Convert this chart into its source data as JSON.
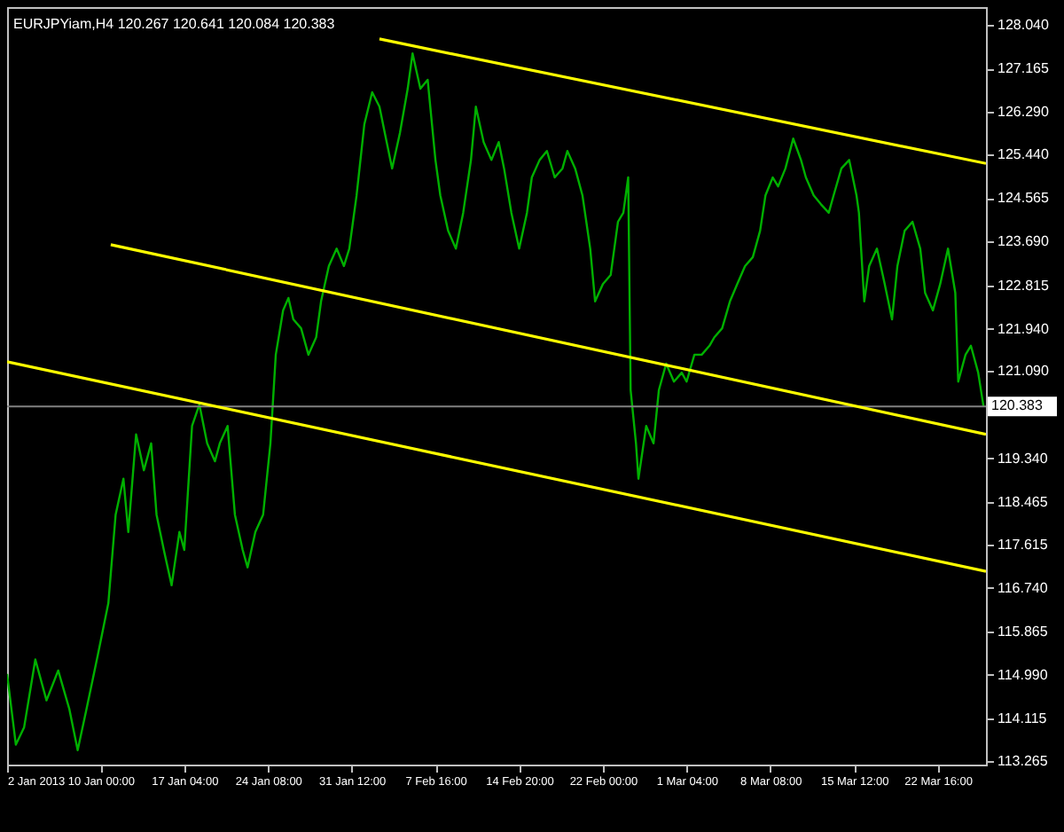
{
  "chart_data": {
    "type": "line",
    "title": "EURJPYiam,H4  120.267 120.641 120.084 120.383",
    "xlim": [
      "2013-01-02T00:00",
      "2013-03-26T19:00"
    ],
    "ylim": [
      113.19,
      128.4
    ],
    "xticks": [
      {
        "value": "2013-01-02T00:00",
        "label": "2 Jan 2013"
      },
      {
        "value": "2013-01-10T00:00",
        "label": "10 Jan 00:00"
      },
      {
        "value": "2013-01-17T04:00",
        "label": "17 Jan 04:00"
      },
      {
        "value": "2013-01-24T08:00",
        "label": "24 Jan 08:00"
      },
      {
        "value": "2013-01-31T12:00",
        "label": "31 Jan 12:00"
      },
      {
        "value": "2013-02-07T16:00",
        "label": "7 Feb 16:00"
      },
      {
        "value": "2013-02-14T20:00",
        "label": "14 Feb 20:00"
      },
      {
        "value": "2013-02-22T00:00",
        "label": "22 Feb 00:00"
      },
      {
        "value": "2013-03-01T04:00",
        "label": "1 Mar 04:00"
      },
      {
        "value": "2013-03-08T08:00",
        "label": "8 Mar 08:00"
      },
      {
        "value": "2013-03-15T12:00",
        "label": "15 Mar 12:00"
      },
      {
        "value": "2013-03-22T16:00",
        "label": "22 Mar 16:00"
      }
    ],
    "yticks": [
      {
        "value": 128.04,
        "label": "128.040"
      },
      127.165,
      {
        "value": 126.29,
        "label": "126.290"
      },
      {
        "value": 125.44,
        "label": "125.440"
      },
      124.565,
      {
        "value": 123.69,
        "label": "123.690"
      },
      122.815,
      {
        "value": 121.94,
        "label": "121.940"
      },
      {
        "value": 121.09,
        "label": "121.090"
      },
      {
        "value": 119.34,
        "label": "119.340"
      },
      118.465,
      117.615,
      {
        "value": 116.74,
        "label": "116.740"
      },
      115.865,
      {
        "value": 114.99,
        "label": "114.990"
      },
      114.115,
      113.265
    ],
    "grid": false,
    "marker": "none",
    "line_style": "solid",
    "ref_lines": [
      {
        "axis": "y",
        "value": 120.383,
        "label": "120.383",
        "color": "#808080"
      }
    ],
    "series": [
      {
        "color": "#00b000",
        "x": [
          "2013-01-02T00:00",
          "2013-01-02T18:00",
          "2013-01-03T11:00",
          "2013-01-04T10:00",
          "2013-01-05T09:00",
          "2013-01-06T09:00",
          "2013-01-07T08:00",
          "2013-01-08T01:00",
          "2013-01-08T19:00",
          "2013-01-09T18:00",
          "2013-01-10T16:00",
          "2013-01-11T07:00",
          "2013-01-11T23:00",
          "2013-01-12T09:00",
          "2013-01-13T01:00",
          "2013-01-13T17:00",
          "2013-01-14T08:00",
          "2013-01-14T19:00",
          "2013-01-15T10:00",
          "2013-01-16T02:00",
          "2013-01-16T18:00",
          "2013-01-17T04:00",
          "2013-01-17T20:00",
          "2013-01-18T11:00",
          "2013-01-19T03:00",
          "2013-01-19T19:00",
          "2013-01-20T05:00",
          "2013-01-20T21:00",
          "2013-01-21T12:00",
          "2013-01-22T04:00",
          "2013-01-22T14:00",
          "2013-01-23T06:00",
          "2013-01-23T22:00",
          "2013-01-24T13:00",
          "2013-01-25T00:00",
          "2013-01-25T15:00",
          "2013-01-26T02:00",
          "2013-01-26T12:00",
          "2013-01-27T04:00",
          "2013-01-27T19:00",
          "2013-01-28T11:00",
          "2013-01-28T21:00",
          "2013-01-29T13:00",
          "2013-01-30T05:00",
          "2013-01-30T20:00",
          "2013-01-31T07:00",
          "2013-01-31T22:00",
          "2013-02-01T14:00",
          "2013-02-02T06:00",
          "2013-02-02T21:00",
          "2013-02-03T08:00",
          "2013-02-03T23:00",
          "2013-02-04T15:00",
          "2013-02-05T07:00",
          "2013-02-05T17:00",
          "2013-02-06T09:00",
          "2013-02-07T00:00",
          "2013-02-07T16:00",
          "2013-02-08T02:00",
          "2013-02-08T18:00",
          "2013-02-09T10:00",
          "2013-02-10T01:00",
          "2013-02-10T17:00",
          "2013-02-11T03:00",
          "2013-02-11T19:00",
          "2013-02-12T11:00",
          "2013-02-13T02:00",
          "2013-02-13T13:00",
          "2013-02-14T04:00",
          "2013-02-14T20:00",
          "2013-02-15T12:00",
          "2013-02-15T22:00",
          "2013-02-16T14:00",
          "2013-02-17T05:00",
          "2013-02-17T21:00",
          "2013-02-18T13:00",
          "2013-02-18T23:00",
          "2013-02-19T15:00",
          "2013-02-20T06:00",
          "2013-02-20T22:00",
          "2013-02-21T08:00",
          "2013-02-22T00:00",
          "2013-02-22T16:00",
          "2013-02-23T07:00",
          "2013-02-23T18:00",
          "2013-02-24T04:00",
          "2013-02-24T09:00",
          "2013-02-24T20:00",
          "2013-02-25T01:00",
          "2013-02-25T17:00",
          "2013-02-26T08:00",
          "2013-02-26T19:00",
          "2013-02-27T10:00",
          "2013-02-28T02:00",
          "2013-02-28T18:00",
          "2013-03-01T04:00",
          "2013-03-01T20:00",
          "2013-03-02T11:00",
          "2013-03-03T03:00",
          "2013-03-03T13:00",
          "2013-03-04T05:00",
          "2013-03-04T21:00",
          "2013-03-05T12:00",
          "2013-03-06T04:00",
          "2013-03-06T20:00",
          "2013-03-07T11:00",
          "2013-03-07T22:00",
          "2013-03-08T13:00",
          "2013-03-09T00:00",
          "2013-03-09T15:00",
          "2013-03-10T07:00",
          "2013-03-10T23:00",
          "2013-03-11T09:00",
          "2013-03-12T01:00",
          "2013-03-12T16:00",
          "2013-03-13T08:00",
          "2013-03-13T18:00",
          "2013-03-14T10:00",
          "2013-03-15T02:00",
          "2013-03-15T17:00",
          "2013-03-15T22:00",
          "2013-03-16T09:00",
          "2013-03-16T19:00",
          "2013-03-17T11:00",
          "2013-03-18T03:00",
          "2013-03-18T18:00",
          "2013-03-19T05:00",
          "2013-03-19T20:00",
          "2013-03-20T12:00",
          "2013-03-21T04:00",
          "2013-03-21T14:00",
          "2013-03-22T06:00",
          "2013-03-22T21:00",
          "2013-03-23T13:00",
          "2013-03-24T04:00",
          "2013-03-24T10:00",
          "2013-03-25T01:00",
          "2013-03-25T12:00",
          "2013-03-26T03:00",
          "2013-03-26T14:00"
        ],
        "values": [
          115.01,
          113.59,
          113.94,
          115.3,
          114.48,
          115.08,
          114.3,
          113.48,
          114.3,
          115.37,
          116.43,
          118.21,
          118.93,
          117.86,
          119.82,
          119.1,
          119.64,
          118.21,
          117.5,
          116.79,
          117.86,
          117.5,
          119.99,
          120.42,
          119.64,
          119.28,
          119.64,
          119.99,
          118.21,
          117.5,
          117.15,
          117.86,
          118.21,
          119.64,
          121.42,
          122.31,
          122.56,
          122.13,
          121.95,
          121.42,
          121.77,
          122.49,
          123.2,
          123.55,
          123.2,
          123.55,
          124.62,
          126.05,
          126.69,
          126.4,
          125.87,
          125.16,
          125.87,
          126.76,
          127.47,
          126.76,
          126.94,
          125.33,
          124.62,
          123.91,
          123.55,
          124.27,
          125.33,
          126.4,
          125.69,
          125.33,
          125.69,
          125.16,
          124.27,
          123.55,
          124.27,
          124.98,
          125.33,
          125.51,
          124.98,
          125.16,
          125.51,
          125.16,
          124.62,
          123.55,
          122.49,
          122.84,
          123.02,
          124.09,
          124.27,
          124.98,
          120.71,
          119.64,
          118.93,
          119.99,
          119.64,
          120.71,
          121.24,
          120.88,
          121.06,
          120.88,
          121.42,
          121.42,
          121.6,
          121.77,
          121.95,
          122.49,
          122.84,
          123.2,
          123.38,
          123.91,
          124.62,
          124.98,
          124.8,
          125.16,
          125.76,
          125.33,
          124.98,
          124.62,
          124.44,
          124.27,
          124.62,
          125.16,
          125.33,
          124.62,
          124.27,
          122.49,
          123.2,
          123.55,
          122.84,
          122.13,
          123.2,
          123.91,
          124.09,
          123.55,
          122.66,
          122.31,
          122.84,
          123.55,
          122.66,
          120.88,
          121.42,
          121.6,
          121.06,
          120.38
        ]
      },
      {
        "color": "#ffff00",
        "x": [
          "2013-02-02T21:00",
          "2013-03-26T19:00"
        ],
        "values": [
          127.76,
          125.26
        ]
      },
      {
        "color": "#ffff00",
        "x": [
          "2013-01-10T21:00",
          "2013-03-26T19:00"
        ],
        "values": [
          123.63,
          119.82
        ]
      },
      {
        "color": "#ffff00",
        "x": [
          "2013-01-02T00:00",
          "2013-03-26T19:00"
        ],
        "values": [
          121.28,
          117.07
        ]
      }
    ]
  }
}
